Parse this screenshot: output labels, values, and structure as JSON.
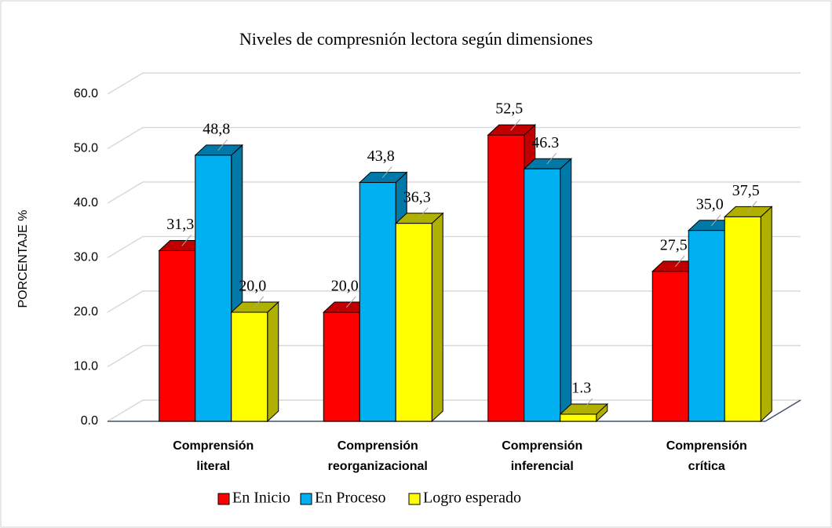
{
  "chart_data": {
    "type": "bar3d",
    "title": "Niveles de compresnión lectora según dimensiones",
    "y_label": "PORCENTAJE %",
    "categories": [
      "Comprensión literal",
      "Comprensión reorganizacional",
      "Comprensión inferencial",
      "Comprensión crítica"
    ],
    "series": [
      {
        "name": "En Inicio",
        "color": "#ff0000",
        "side_color": "#c00000",
        "values": [
          31.3,
          20.0,
          52.5,
          27.5
        ],
        "value_labels": [
          "31,3",
          "20,0",
          "52,5",
          "27,5"
        ]
      },
      {
        "name": "En Proceso",
        "color": "#00b0f0",
        "side_color": "#0078a8",
        "values": [
          48.8,
          43.8,
          46.3,
          35.0
        ],
        "value_labels": [
          "48,8",
          "43,8",
          "46.3",
          "35,0"
        ]
      },
      {
        "name": "Logro esperado",
        "color": "#ffff00",
        "side_color": "#b0b000",
        "values": [
          20.0,
          36.3,
          1.3,
          37.5
        ],
        "value_labels": [
          "20,0",
          "36,3",
          "1.3",
          "37,5"
        ]
      }
    ],
    "ylim": [
      0,
      60
    ],
    "yticks": [
      {
        "value": 0,
        "label": "0.0"
      },
      {
        "value": 10,
        "label": "10.0"
      },
      {
        "value": 20,
        "label": "20.0"
      },
      {
        "value": 30,
        "label": "30.0"
      },
      {
        "value": 40,
        "label": "40.0"
      },
      {
        "value": 50,
        "label": "50.0"
      },
      {
        "value": 60,
        "label": "60.0"
      }
    ],
    "grid": true,
    "legend": "bottom"
  }
}
